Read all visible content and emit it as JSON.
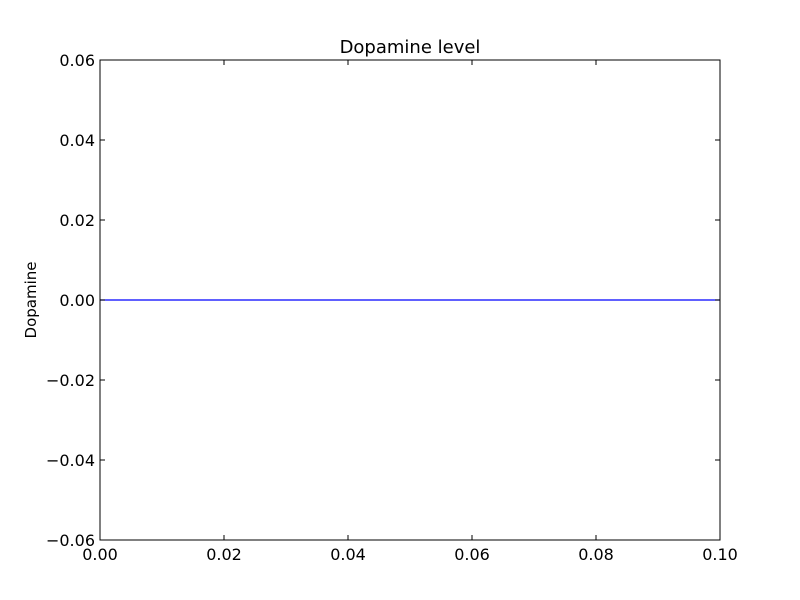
{
  "chart_data": {
    "type": "line",
    "title": "Dopamine level",
    "xlabel": "",
    "ylabel": "Dopamine",
    "xlim": [
      0.0,
      0.1
    ],
    "ylim": [
      -0.06,
      0.06
    ],
    "xticks": [
      "0.00",
      "0.02",
      "0.04",
      "0.06",
      "0.08",
      "0.10"
    ],
    "xtick_values": [
      0.0,
      0.02,
      0.04,
      0.06,
      0.08,
      0.1
    ],
    "yticks": [
      "−0.06",
      "−0.04",
      "−0.02",
      "0.00",
      "0.02",
      "0.04",
      "0.06"
    ],
    "ytick_values": [
      -0.06,
      -0.04,
      -0.02,
      0.0,
      0.02,
      0.04,
      0.06
    ],
    "grid": false,
    "series": [
      {
        "x": [
          0.0,
          0.1
        ],
        "y": [
          0.0,
          0.0
        ],
        "color": "#0000ff"
      }
    ]
  }
}
